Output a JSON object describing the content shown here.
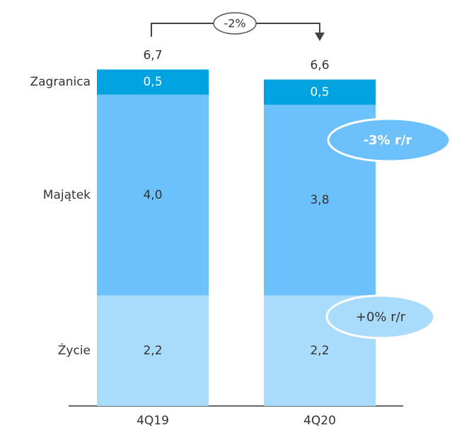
{
  "chart_data": {
    "type": "stacked_bar",
    "categories": [
      "4Q19",
      "4Q20"
    ],
    "series": [
      {
        "name": "Życie",
        "color": "#a9dcfb",
        "values": [
          2.2,
          2.2
        ],
        "value_labels": [
          "2,2",
          "2,2"
        ]
      },
      {
        "name": "Majątek",
        "color": "#6cc1fb",
        "values": [
          4.0,
          3.8
        ],
        "value_labels": [
          "4,0",
          "3,8"
        ]
      },
      {
        "name": "Zagranica",
        "color": "#00a3e0",
        "values": [
          0.5,
          0.5
        ],
        "value_labels": [
          "0,5",
          "0,5"
        ]
      }
    ],
    "totals": [
      6.7,
      6.6
    ],
    "total_labels": [
      "6,7",
      "6,6"
    ],
    "annotations": [
      "-2%",
      "-3% r/r",
      "+0% r/r"
    ]
  }
}
